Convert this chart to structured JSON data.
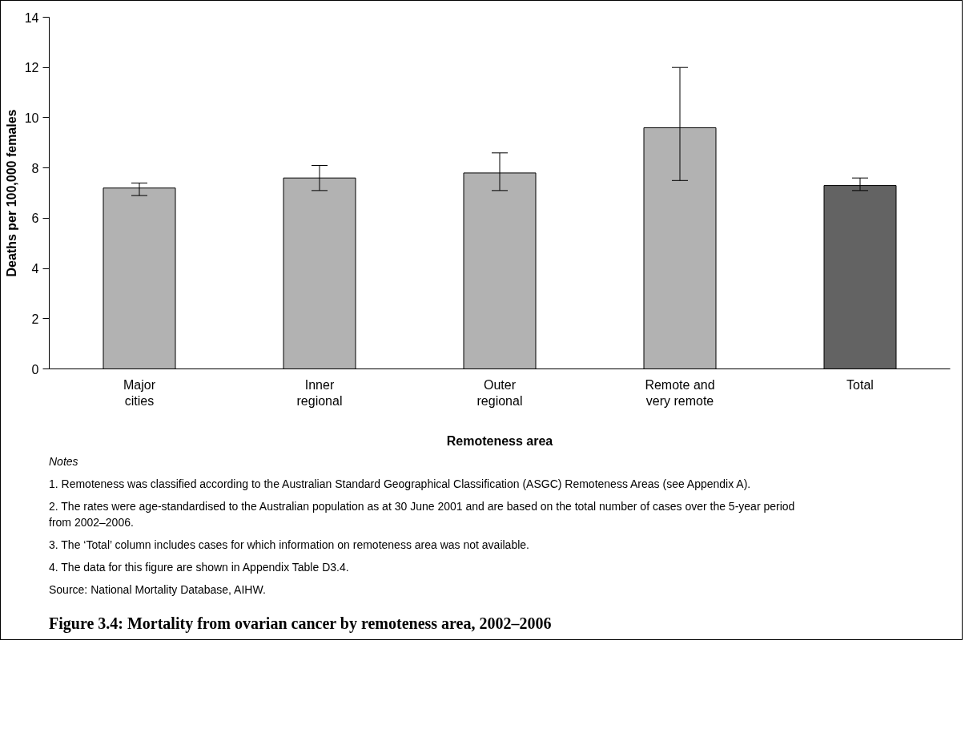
{
  "chart_data": {
    "type": "bar",
    "title": "Figure 3.4: Mortality from ovarian cancer by remoteness area, 2002–2006",
    "xlabel": "Remoteness area",
    "ylabel": "Deaths per 100,000 females",
    "categories": [
      "Major\ncities",
      "Inner\nregional",
      "Outer\nregional",
      "Remote and\nvery remote",
      "Total"
    ],
    "values": [
      7.2,
      7.6,
      7.8,
      9.6,
      7.3
    ],
    "colors": [
      "#b2b2b2",
      "#b2b2b2",
      "#b2b2b2",
      "#b2b2b2",
      "#636363"
    ],
    "errors": [
      [
        6.9,
        7.4
      ],
      [
        7.1,
        8.1
      ],
      [
        7.1,
        8.6
      ],
      [
        7.5,
        12.0
      ],
      [
        7.1,
        7.6
      ]
    ],
    "ylim": [
      0,
      14
    ],
    "yticks": [
      0,
      2,
      4,
      6,
      8,
      10,
      12,
      14
    ],
    "grid": false,
    "annotations": [
      "Notes",
      "1. Remoteness was classified according to the Australian Standard Geographical Classification (ASGC) Remoteness Areas (see Appendix A).",
      "2. The rates were age-standardised to the Australian population as at 30 June 2001 and are based on the total number of cases over the 5-year period from 2002–2006.",
      "3. The ‘Total’ column includes cases for which information on remoteness area was not available.",
      "4. The data for this figure are shown in Appendix Table D3.4.",
      "Source: National Mortality Database, AIHW."
    ]
  }
}
